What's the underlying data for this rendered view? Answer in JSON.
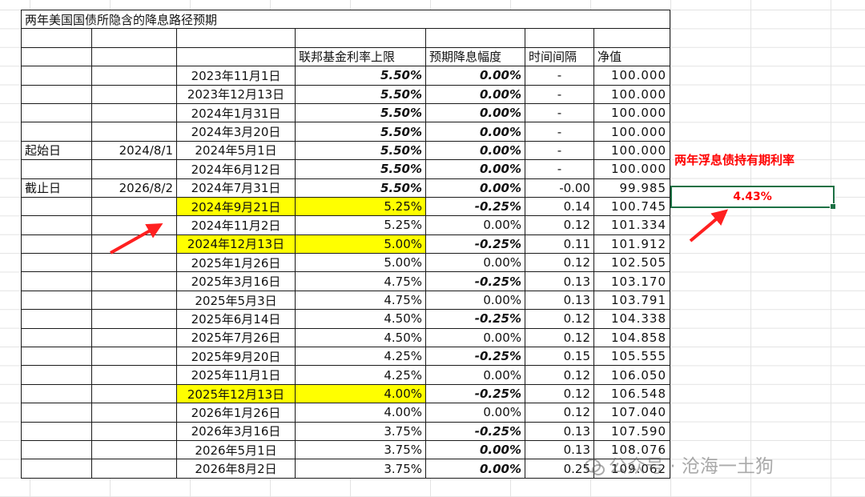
{
  "title": "两年美国国债所隐含的降息路径预期",
  "headers": {
    "fed_upper": "联邦基金利率上限",
    "expected_cut": "预期降息幅度",
    "interval": "时间间隔",
    "net_value": "净值"
  },
  "start": {
    "label": "起始日",
    "date": "2024/8/1"
  },
  "end": {
    "label": "截止日",
    "date": "2026/8/2"
  },
  "rows": [
    {
      "date": "2023年11月1日",
      "rate": "5.50%",
      "cut": "0.00%",
      "interval": "-",
      "value": "100.000"
    },
    {
      "date": "2023年12月13日",
      "rate": "5.50%",
      "cut": "0.00%",
      "interval": "-",
      "value": "100.000"
    },
    {
      "date": "2024年1月31日",
      "rate": "5.50%",
      "cut": "0.00%",
      "interval": "-",
      "value": "100.000"
    },
    {
      "date": "2024年3月20日",
      "rate": "5.50%",
      "cut": "0.00%",
      "interval": "-",
      "value": "100.000"
    },
    {
      "date": "2024年5月1日",
      "rate": "5.50%",
      "cut": "0.00%",
      "interval": "-",
      "value": "100.000"
    },
    {
      "date": "2024年6月12日",
      "rate": "5.50%",
      "cut": "0.00%",
      "interval": "-",
      "value": "100.000"
    },
    {
      "date": "2024年7月31日",
      "rate": "5.50%",
      "cut": "0.00%",
      "interval": "-0.00",
      "value": "99.985"
    },
    {
      "date": "2024年9月21日",
      "rate": "5.25%",
      "cut": "-0.25%",
      "interval": "0.14",
      "value": "100.745"
    },
    {
      "date": "2024年11月2日",
      "rate": "5.25%",
      "cut": "0.00%",
      "interval": "0.12",
      "value": "101.334"
    },
    {
      "date": "2024年12月13日",
      "rate": "5.00%",
      "cut": "-0.25%",
      "interval": "0.11",
      "value": "101.912"
    },
    {
      "date": "2025年1月26日",
      "rate": "5.00%",
      "cut": "0.00%",
      "interval": "0.12",
      "value": "102.505"
    },
    {
      "date": "2025年3月16日",
      "rate": "4.75%",
      "cut": "-0.25%",
      "interval": "0.13",
      "value": "103.170"
    },
    {
      "date": "2025年5月3日",
      "rate": "4.75%",
      "cut": "0.00%",
      "interval": "0.13",
      "value": "103.791"
    },
    {
      "date": "2025年6月14日",
      "rate": "4.50%",
      "cut": "-0.25%",
      "interval": "0.12",
      "value": "104.338"
    },
    {
      "date": "2025年7月26日",
      "rate": "4.50%",
      "cut": "0.00%",
      "interval": "0.12",
      "value": "104.858"
    },
    {
      "date": "2025年9月20日",
      "rate": "4.25%",
      "cut": "-0.25%",
      "interval": "0.15",
      "value": "105.555"
    },
    {
      "date": "2025年11月1日",
      "rate": "4.25%",
      "cut": "0.00%",
      "interval": "0.12",
      "value": "106.050"
    },
    {
      "date": "2025年12月13日",
      "rate": "4.00%",
      "cut": "-0.25%",
      "interval": "0.12",
      "value": "106.548"
    },
    {
      "date": "2026年1月26日",
      "rate": "4.00%",
      "cut": "0.00%",
      "interval": "0.12",
      "value": "107.040"
    },
    {
      "date": "2026年3月16日",
      "rate": "3.75%",
      "cut": "-0.25%",
      "interval": "0.13",
      "value": "107.590"
    },
    {
      "date": "2026年5月1日",
      "rate": "3.75%",
      "cut": "0.00%",
      "interval": "0.13",
      "value": "108.076"
    },
    {
      "date": "2026年8月2日",
      "rate": "3.75%",
      "cut": "0.00%",
      "interval": "0.25",
      "value": "109.062"
    }
  ],
  "side_label": "两年浮息债持有期利率",
  "result": "4.43%",
  "watermark": "公众号 · 沧海一土狗",
  "colors": {
    "purple": "#7030a0",
    "red": "#ff0000",
    "green": "#00a550",
    "highlight": "#ffff00",
    "selection": "#1e7145"
  }
}
